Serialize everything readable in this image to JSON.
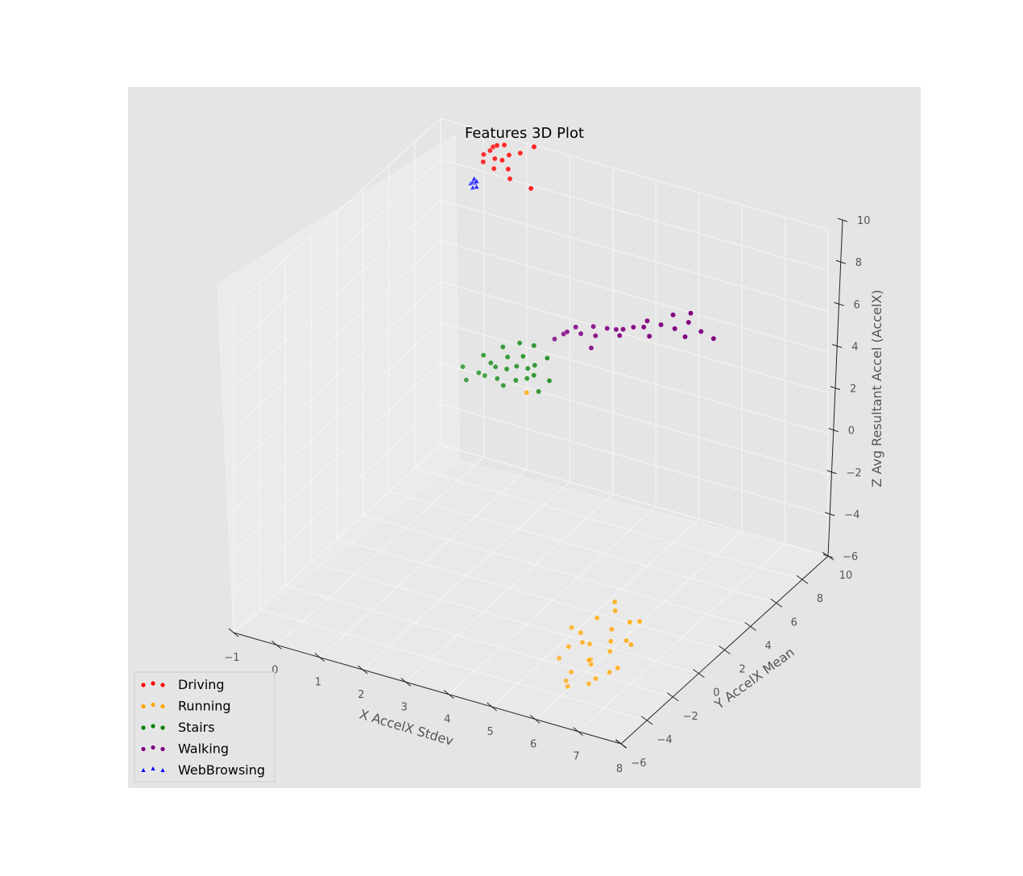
{
  "chart_data": {
    "type": "scatter",
    "projection": "3d",
    "title": "Features 3D Plot",
    "xlabel": "X AccelX Stdev",
    "ylabel": "Y AccelX Mean",
    "zlabel": "Z Avg Resultant Accel (AccelX)",
    "xlim": [
      -1,
      8
    ],
    "ylim": [
      -6,
      10
    ],
    "zlim": [
      -6,
      10
    ],
    "x_ticks": [
      "−1",
      "0",
      "1",
      "2",
      "3",
      "4",
      "5",
      "6",
      "7",
      "8"
    ],
    "y_ticks": [
      "−6",
      "−4",
      "−2",
      "0",
      "2",
      "4",
      "6",
      "8",
      "10"
    ],
    "z_ticks": [
      "−6",
      "−4",
      "−2",
      "0",
      "2",
      "4",
      "6",
      "8",
      "10"
    ],
    "grid": true,
    "legend_position": "lower-left",
    "series": [
      {
        "name": "Driving",
        "color": "#ff0000",
        "marker": "circle",
        "points": [
          [
            0.2,
            9.3,
            9.0
          ],
          [
            0.3,
            9.5,
            9.5
          ],
          [
            0.3,
            9.0,
            9.6
          ],
          [
            0.4,
            9.4,
            9.8
          ],
          [
            0.5,
            9.2,
            9.4
          ],
          [
            0.6,
            8.8,
            9.2
          ],
          [
            0.6,
            9.6,
            9.9
          ],
          [
            0.7,
            9.1,
            9.5
          ],
          [
            0.8,
            9.3,
            9.7
          ],
          [
            0.9,
            8.9,
            9.3
          ],
          [
            1.0,
            9.5,
            9.8
          ],
          [
            1.0,
            8.7,
            9.0
          ],
          [
            0.4,
            9.7,
            9.7
          ],
          [
            1.4,
            9.0,
            8.6
          ],
          [
            1.2,
            9.9,
            10.0
          ]
        ]
      },
      {
        "name": "Running",
        "color": "#ffa500",
        "marker": "circle",
        "points": [
          [
            6.0,
            -3.2,
            -5.3
          ],
          [
            6.2,
            -2.5,
            -5.0
          ],
          [
            5.8,
            -1.8,
            -4.3
          ],
          [
            6.4,
            -3.0,
            -4.8
          ],
          [
            6.6,
            -2.2,
            -4.5
          ],
          [
            6.0,
            -1.2,
            -3.8
          ],
          [
            6.8,
            -1.6,
            -4.2
          ],
          [
            5.6,
            -2.8,
            -5.1
          ],
          [
            6.3,
            -0.8,
            -3.5
          ],
          [
            6.9,
            -2.6,
            -4.9
          ],
          [
            6.5,
            -3.5,
            -5.4
          ],
          [
            5.9,
            -2.0,
            -4.6
          ],
          [
            6.7,
            -1.0,
            -3.7
          ],
          [
            6.1,
            -3.8,
            -5.6
          ],
          [
            6.6,
            -3.3,
            -5.2
          ],
          [
            7.0,
            -1.9,
            -4.1
          ],
          [
            5.7,
            -2.4,
            -4.7
          ],
          [
            6.4,
            -1.4,
            -4.0
          ],
          [
            6.2,
            -0.5,
            -3.3
          ],
          [
            6.8,
            -2.9,
            -5.0
          ],
          [
            6.0,
            -3.6,
            -5.5
          ],
          [
            5.5,
            -1.5,
            -4.4
          ],
          [
            6.5,
            -1.8,
            -4.3
          ],
          [
            6.3,
            -2.7,
            -4.8
          ],
          [
            6.9,
            -0.9,
            -3.6
          ],
          [
            6.1,
            -2.1,
            -4.5
          ],
          [
            2.2,
            6.0,
            0.8
          ]
        ]
      },
      {
        "name": "Stairs",
        "color": "#008000",
        "marker": "circle",
        "points": [
          [
            2.0,
            2.0,
            3.6
          ],
          [
            2.2,
            2.3,
            3.9
          ],
          [
            2.4,
            2.1,
            4.0
          ],
          [
            2.5,
            2.6,
            4.2
          ],
          [
            2.6,
            2.4,
            3.8
          ],
          [
            2.7,
            2.8,
            4.1
          ],
          [
            2.8,
            2.2,
            3.7
          ],
          [
            2.9,
            2.9,
            4.3
          ],
          [
            3.0,
            2.5,
            3.9
          ],
          [
            3.1,
            3.1,
            4.2
          ],
          [
            3.2,
            2.7,
            4.0
          ],
          [
            2.3,
            2.9,
            4.1
          ],
          [
            2.6,
            3.2,
            4.4
          ],
          [
            2.9,
            3.4,
            4.5
          ],
          [
            3.3,
            2.9,
            4.1
          ],
          [
            3.4,
            3.6,
            4.6
          ],
          [
            3.5,
            2.6,
            3.6
          ],
          [
            1.8,
            2.4,
            3.9
          ],
          [
            2.1,
            3.0,
            4.3
          ],
          [
            2.4,
            3.5,
            4.6
          ],
          [
            2.7,
            3.8,
            4.8
          ],
          [
            3.0,
            3.9,
            4.8
          ],
          [
            3.2,
            3.3,
            4.3
          ],
          [
            3.6,
            3.1,
            3.9
          ]
        ]
      },
      {
        "name": "Walking",
        "color": "#800080",
        "marker": "circle",
        "points": [
          [
            3.0,
            5.5,
            4.2
          ],
          [
            3.2,
            5.8,
            4.5
          ],
          [
            3.4,
            6.2,
            4.3
          ],
          [
            3.6,
            6.5,
            4.6
          ],
          [
            3.8,
            6.9,
            4.4
          ],
          [
            4.0,
            7.2,
            4.0
          ],
          [
            4.2,
            7.6,
            4.3
          ],
          [
            4.4,
            8.0,
            4.5
          ],
          [
            4.6,
            8.4,
            4.2
          ],
          [
            4.8,
            8.8,
            3.9
          ],
          [
            5.0,
            9.2,
            4.1
          ],
          [
            5.2,
            9.5,
            3.6
          ],
          [
            5.4,
            9.8,
            3.2
          ],
          [
            3.5,
            7.0,
            3.8
          ],
          [
            3.9,
            7.8,
            3.9
          ],
          [
            4.3,
            8.5,
            3.4
          ],
          [
            4.5,
            7.4,
            4.6
          ],
          [
            4.1,
            6.6,
            4.7
          ],
          [
            3.7,
            6.0,
            3.9
          ],
          [
            4.7,
            9.0,
            4.4
          ],
          [
            5.1,
            8.6,
            3.8
          ],
          [
            3.3,
            5.2,
            4.8
          ],
          [
            4.9,
            9.7,
            4.2
          ],
          [
            3.1,
            6.8,
            4.1
          ]
        ]
      },
      {
        "name": "WebBrowsing",
        "color": "#0000ff",
        "marker": "triangle",
        "points": [
          [
            0.0,
            9.0,
            8.0
          ],
          [
            0.05,
            9.1,
            8.2
          ],
          [
            0.1,
            9.0,
            8.1
          ],
          [
            0.08,
            8.9,
            7.9
          ],
          [
            0.12,
            9.05,
            8.15
          ],
          [
            0.03,
            9.08,
            8.05
          ],
          [
            0.15,
            8.95,
            7.95
          ]
        ]
      }
    ]
  }
}
